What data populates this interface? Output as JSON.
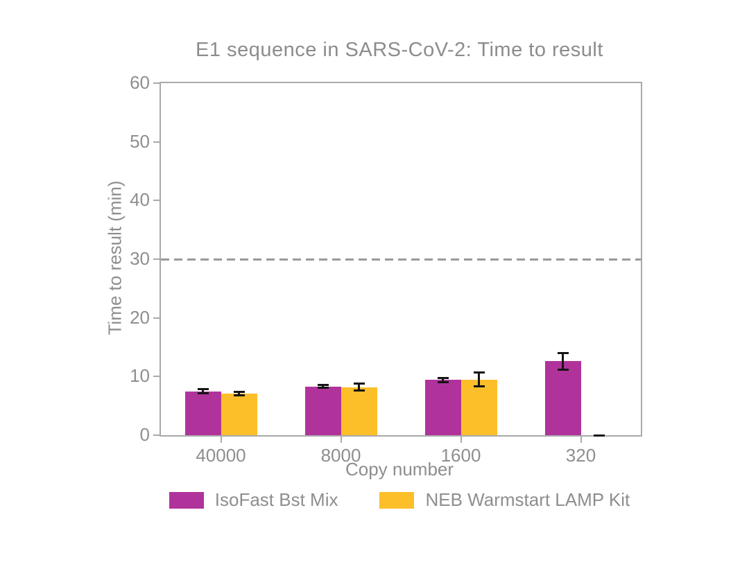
{
  "figure": {
    "background": "#ffffff",
    "axis_color": "#a9a9a9",
    "text_color": "#8e8e8e",
    "error_bar_color": "#141414"
  },
  "chart_data": {
    "type": "bar",
    "title": "E1 sequence in SARS-CoV-2: Time to result",
    "xlabel": "Copy number",
    "ylabel": "Time to result (min)",
    "categories": [
      "40000",
      "8000",
      "1600",
      "320"
    ],
    "series": [
      {
        "name": "IsoFast Bst Mix",
        "color": "#b0339c",
        "values": [
          7.5,
          8.3,
          9.4,
          12.6
        ],
        "errors": [
          0.3,
          0.25,
          0.4,
          1.4
        ]
      },
      {
        "name": "NEB Warmstart LAMP Kit",
        "color": "#fcbf2a",
        "values": [
          7.1,
          8.2,
          9.5,
          0
        ],
        "errors": [
          0.25,
          0.6,
          1.2,
          0
        ]
      }
    ],
    "ylim": [
      0,
      60
    ],
    "yticks": [
      0,
      10,
      20,
      30,
      40,
      50,
      60
    ],
    "threshold_line": {
      "value": 30,
      "style": "dashed",
      "color": "#999999"
    },
    "grid": false,
    "legend_position": "bottom"
  }
}
